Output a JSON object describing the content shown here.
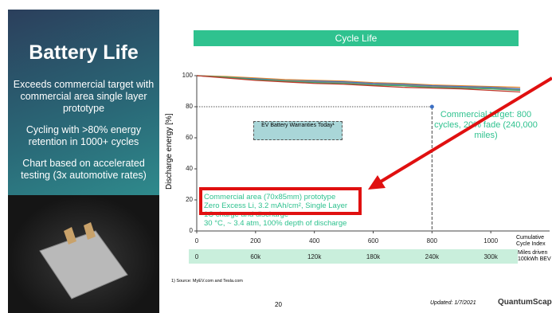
{
  "sidebar": {
    "title": "Battery Life",
    "points": [
      "Exceeds commercial target with commercial area single layer prototype",
      "Cycling with >80% energy retention in 1000+ cycles",
      "Chart based on accelerated testing (3x automotive rates)"
    ]
  },
  "chart_data": {
    "type": "line",
    "title": "Cycle Life",
    "y_label": "Discharge energy [%]",
    "x_label": "Cumulative Cycle Index",
    "x2_label": "Miles driven 100kWh BEV",
    "x": [
      0,
      100,
      200,
      300,
      400,
      500,
      600,
      700,
      800,
      900,
      1000,
      1100
    ],
    "series": [
      {
        "color": "#e8892b",
        "values": [
          100,
          99.5,
          98.5,
          97.5,
          97,
          96.5,
          95.5,
          95,
          94,
          93.5,
          93,
          92.5
        ]
      },
      {
        "color": "#3b6fc4",
        "values": [
          100,
          99,
          98,
          97,
          96.5,
          96,
          95,
          94.5,
          93.5,
          93,
          92.5,
          91.5
        ]
      },
      {
        "color": "#8a8a8a",
        "values": [
          100,
          99,
          97.5,
          97,
          96,
          95.5,
          94.5,
          94,
          93,
          92.5,
          92,
          91
        ]
      },
      {
        "color": "#3aa86b",
        "values": [
          100,
          99,
          97.5,
          96.5,
          95.5,
          95,
          94,
          93.5,
          92.5,
          92,
          91.5,
          90.5
        ]
      },
      {
        "color": "#c0392b",
        "values": [
          100,
          98.5,
          97,
          96,
          95,
          94.5,
          93.5,
          92.5,
          92,
          91.5,
          90.5,
          89.5
        ]
      }
    ],
    "target": {
      "x": 800,
      "y": 80
    },
    "xlim": [
      0,
      1200
    ],
    "ylim": [
      0,
      100
    ],
    "xticks": [
      0,
      200,
      400,
      600,
      800,
      1000
    ],
    "yticks": [
      0,
      20,
      40,
      60,
      80,
      100
    ],
    "x2lim": [
      0,
      360000
    ],
    "x2ticks": [
      0,
      {
        "value": 60000,
        "label": "60k"
      },
      {
        "value": 120000,
        "label": "120k"
      },
      {
        "value": 180000,
        "label": "180k"
      },
      {
        "value": 240000,
        "label": "240k"
      },
      {
        "value": 300000,
        "label": "300k"
      }
    ],
    "annotations": [
      "EV Battery Warranties Today¹",
      "Commercial target: 800 cycles, 20% fade (240,000 miles)",
      "Commercial area (70x85mm) prototype",
      "Zero Excess Li, 3.2 mAh/cm², Single Layer",
      "1C charge and discharge",
      "30 °C, ~ 3.4 atm, 100% depth of discharge"
    ]
  },
  "footer": {
    "note": "1)   Source: MyEV.com and Tesla.com",
    "page": "20",
    "updated": "Updated: 1/7/2021",
    "logo": "QuantumScape"
  }
}
